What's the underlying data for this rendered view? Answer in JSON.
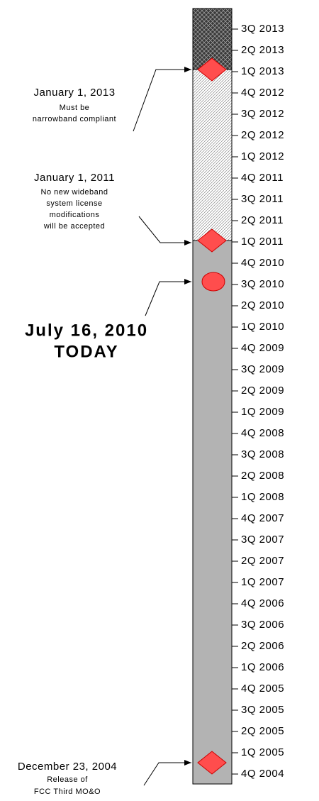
{
  "timeline": {
    "quarters": [
      "3Q 2013",
      "2Q 2013",
      "1Q 2013",
      "4Q 2012",
      "3Q 2012",
      "2Q 2012",
      "1Q 2012",
      "4Q 2011",
      "3Q 2011",
      "2Q 2011",
      "1Q 2011",
      "4Q 2010",
      "3Q 2010",
      "2Q 2010",
      "1Q 2010",
      "4Q 2009",
      "3Q 2009",
      "2Q 2009",
      "1Q 2009",
      "4Q 2008",
      "3Q 2008",
      "2Q 2008",
      "1Q 2008",
      "4Q 2007",
      "3Q 2007",
      "2Q 2007",
      "1Q 2007",
      "4Q 2006",
      "3Q 2006",
      "2Q 2006",
      "1Q 2006",
      "4Q 2005",
      "3Q 2005",
      "2Q 2005",
      "1Q 2005",
      "4Q 2004"
    ]
  },
  "annotations": [
    {
      "title": "January 1, 2013",
      "details": [
        "Must be",
        "narrowband compliant"
      ]
    },
    {
      "title": "January 1, 2011",
      "details": [
        "No new wideband",
        "system license",
        "modifications",
        "will be accepted"
      ]
    },
    {
      "title": "July 16, 2010",
      "details": [
        "TODAY"
      ]
    },
    {
      "title": "December 23, 2004",
      "details": [
        "Release of",
        "FCC Third MO&O"
      ]
    }
  ]
}
